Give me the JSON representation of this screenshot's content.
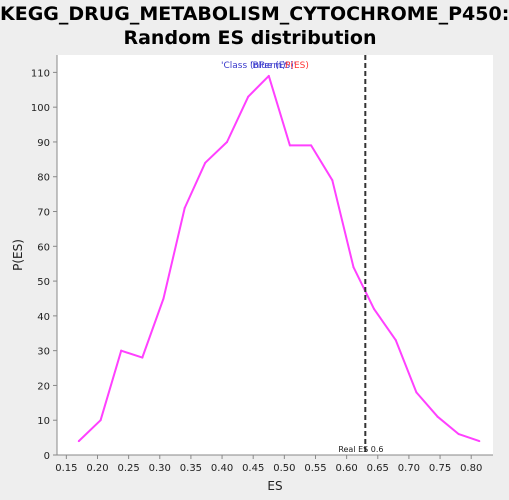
{
  "chart_data": {
    "type": "line",
    "title": [
      "KEGG_DRUG_METABOLISM_CYTOCHROME_P450:",
      "Random ES distribution"
    ],
    "xlabel": "ES",
    "ylabel": "P(ES)",
    "xlim": [
      0.135,
      0.835
    ],
    "ylim": [
      0,
      115
    ],
    "x_ticks": [
      "0.15",
      "0.20",
      "0.25",
      "0.30",
      "0.35",
      "0.40",
      "0.45",
      "0.50",
      "0.55",
      "0.60",
      "0.65",
      "0.70",
      "0.75",
      "0.80"
    ],
    "y_ticks": [
      "0",
      "10",
      "20",
      "30",
      "40",
      "50",
      "60",
      "70",
      "80",
      "90",
      "100",
      "110"
    ],
    "grid": false,
    "series": [
      {
        "color": "#ff40ff",
        "x": [
          0.17,
          0.205,
          0.238,
          0.272,
          0.306,
          0.34,
          0.373,
          0.408,
          0.442,
          0.475,
          0.509,
          0.543,
          0.577,
          0.611,
          0.644,
          0.679,
          0.712,
          0.746,
          0.78,
          0.813
        ],
        "y": [
          4,
          10,
          30,
          28,
          45,
          71,
          84,
          90,
          103,
          109,
          89,
          89,
          79,
          54,
          42,
          33,
          18,
          11,
          6,
          4
        ]
      }
    ],
    "real_es": {
      "value": 0.63,
      "label": "Real ES 0.6",
      "color": "#333333"
    },
    "legend_overlap": [
      {
        "text": "'Class (nPerm)'",
        "color": "#3a3acc"
      },
      {
        "text": "'Blue (ES)'",
        "color": "#3a3acc"
      },
      {
        "text": "P(ES)",
        "color": "#ff3333"
      }
    ]
  }
}
